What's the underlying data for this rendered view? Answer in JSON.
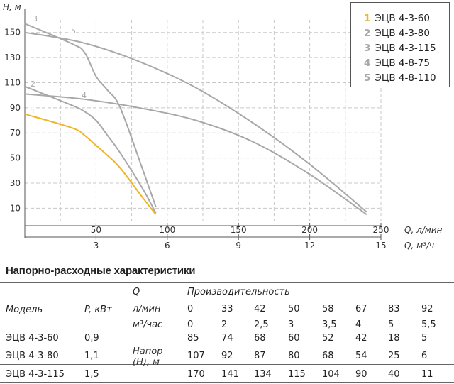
{
  "chart_data": {
    "type": "line",
    "ylabel": "H, м",
    "y_ticks": [
      10,
      30,
      50,
      70,
      90,
      110,
      130,
      150
    ],
    "ylim": [
      0,
      160
    ],
    "x_ticks_lpm": [
      50,
      100,
      150,
      200,
      250
    ],
    "x_ticks_m3h": [
      3,
      6,
      9,
      12,
      15
    ],
    "xlim_lpm": [
      0,
      250
    ],
    "xlabel_lpm": "Q, л/мин",
    "xlabel_m3h": "Q, м³/ч",
    "grid": true,
    "legend_position": "top-right",
    "series": [
      {
        "name": "ЭЦВ 4-3-60",
        "label": "1",
        "color": "#f0b429",
        "x": [
          0,
          33,
          42,
          50,
          58,
          67,
          83,
          92
        ],
        "y": [
          85,
          74,
          68,
          60,
          52,
          42,
          18,
          5
        ]
      },
      {
        "name": "ЭЦВ 4-3-80",
        "label": "2",
        "color": "#a8a8a8",
        "x": [
          0,
          33,
          42,
          50,
          58,
          67,
          83,
          92
        ],
        "y": [
          107,
          92,
          87,
          80,
          68,
          54,
          25,
          6
        ]
      },
      {
        "name": "ЭЦВ 4-3-115",
        "label": "3",
        "color": "#a8a8a8",
        "x": [
          0,
          33,
          42,
          50,
          58,
          67,
          83,
          92
        ],
        "y": [
          170,
          141,
          134,
          115,
          104,
          90,
          40,
          11
        ]
      },
      {
        "name": "ЭЦВ 4-8-75",
        "label": "4",
        "color": "#a8a8a8",
        "x": [
          0,
          40,
          80,
          120,
          160,
          200,
          240
        ],
        "y": [
          101,
          97,
          90,
          80,
          63,
          37,
          5
        ]
      },
      {
        "name": "ЭЦВ 4-8-110",
        "label": "5",
        "color": "#a8a8a8",
        "x": [
          0,
          40,
          80,
          120,
          160,
          200,
          240
        ],
        "y": [
          150,
          142,
          127,
          106,
          78,
          45,
          7
        ]
      }
    ]
  },
  "table": {
    "title": "Напорно-расходные характеристики",
    "col_q": "Q",
    "col_prod": "Производительность",
    "col_model": "Модель",
    "col_power": "P, кВт",
    "unit_lpm": "л/мин",
    "unit_m3h": "м³/час",
    "head_label_1": "Напор",
    "head_label_2": "(H), м",
    "lpm": [
      "0",
      "33",
      "42",
      "50",
      "58",
      "67",
      "83",
      "92"
    ],
    "m3h": [
      "0",
      "2",
      "2,5",
      "3",
      "3,5",
      "4",
      "5",
      "5,5"
    ],
    "rows": [
      {
        "model": "ЭЦВ 4-3-60",
        "power": "0,9",
        "values": [
          "85",
          "74",
          "68",
          "60",
          "52",
          "42",
          "18",
          "5"
        ]
      },
      {
        "model": "ЭЦВ 4-3-80",
        "power": "1,1",
        "values": [
          "107",
          "92",
          "87",
          "80",
          "68",
          "54",
          "25",
          "6"
        ]
      },
      {
        "model": "ЭЦВ 4-3-115",
        "power": "1,5",
        "values": [
          "170",
          "141",
          "134",
          "115",
          "104",
          "90",
          "40",
          "11"
        ]
      }
    ]
  }
}
